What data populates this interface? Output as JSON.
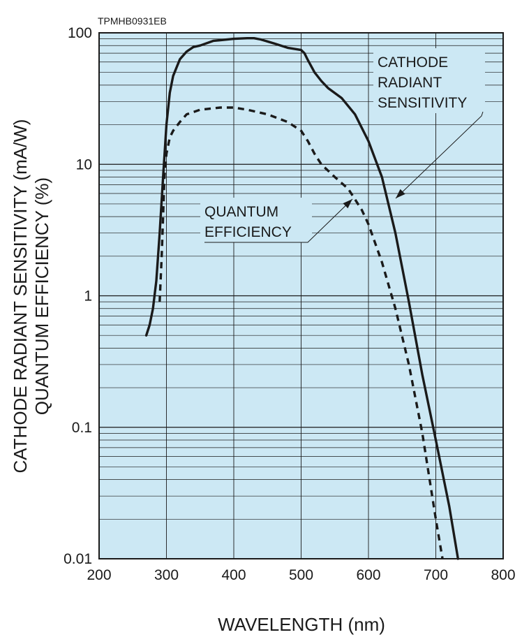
{
  "figure_code": "TPMHB0931EB",
  "chart_data": {
    "type": "line",
    "xlabel": "WAVELENGTH (nm)",
    "ylabel": [
      "CATHODE RADIANT SENSITIVITY (mA/W)",
      "QUANTUM EFFICIENCY (%)"
    ],
    "x_ticks": [
      "200",
      "300",
      "400",
      "500",
      "600",
      "700",
      "800"
    ],
    "y_ticks": [
      "0.01",
      "0.1",
      "1",
      "10",
      "100"
    ],
    "xlim": [
      200,
      800
    ],
    "ylim": [
      0.01,
      100
    ],
    "y_scale": "log",
    "grid": true,
    "background_color": "#cce8f4",
    "line_color": "#1a1a1a",
    "series": [
      {
        "name": "CATHODE RADIANT SENSITIVITY",
        "style": "solid",
        "x": [
          270,
          275,
          280,
          285,
          290,
          295,
          300,
          305,
          310,
          320,
          330,
          340,
          350,
          370,
          380,
          400,
          420,
          430,
          440,
          460,
          480,
          500,
          505,
          510,
          520,
          530,
          540,
          560,
          580,
          600,
          620,
          640,
          660,
          680,
          700,
          720,
          733
        ],
        "y": [
          0.5,
          0.6,
          0.8,
          1.3,
          3,
          8,
          20,
          35,
          47,
          63,
          72,
          78,
          80,
          87,
          88,
          90,
          91,
          91,
          89,
          83,
          77,
          74,
          70,
          62,
          50,
          43,
          38,
          32,
          24,
          15,
          8,
          3,
          0.9,
          0.25,
          0.08,
          0.025,
          0.01
        ],
        "label": [
          "CATHODE",
          "RADIANT",
          "SENSITIVITY"
        ]
      },
      {
        "name": "QUANTUM EFFICIENCY",
        "style": "dashed",
        "x": [
          290,
          293,
          295,
          297,
          300,
          305,
          310,
          320,
          330,
          350,
          380,
          400,
          420,
          450,
          480,
          500,
          510,
          520,
          530,
          550,
          570,
          590,
          600,
          620,
          640,
          660,
          680,
          700,
          710
        ],
        "y": [
          0.9,
          2,
          4,
          8,
          12,
          16,
          18,
          21,
          24,
          26,
          27,
          27,
          26,
          24,
          21,
          18,
          15,
          12,
          10,
          8,
          6.5,
          4.5,
          3.5,
          1.8,
          0.8,
          0.3,
          0.09,
          0.02,
          0.01
        ],
        "label": [
          "QUANTUM",
          "EFFICIENCY"
        ]
      }
    ]
  }
}
